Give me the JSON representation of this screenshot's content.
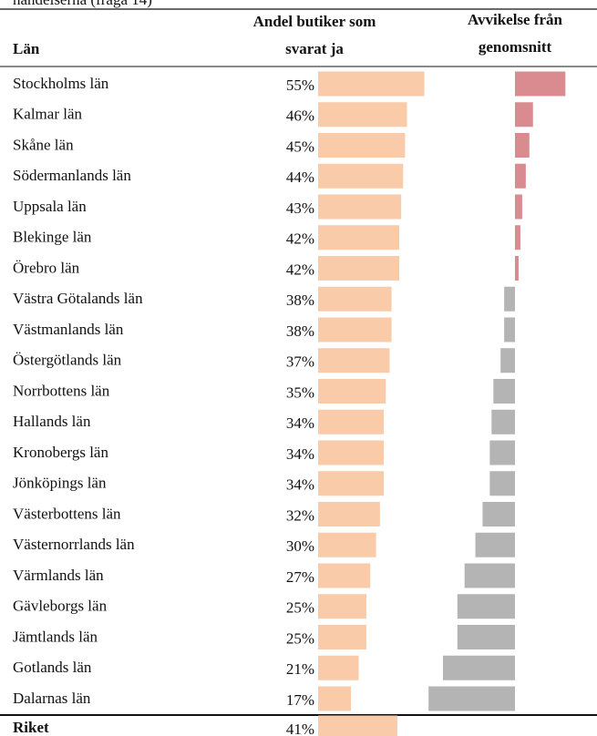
{
  "caption": "handelserna (fråga 14)",
  "table": {
    "headers": {
      "region": "Län",
      "share": [
        "Andel butiker som",
        "svarat ja"
      ],
      "deviation": [
        "Avvikelse från",
        "genomsnitt"
      ]
    },
    "colors": {
      "share": "#f9cba8",
      "positive": "#d98b90",
      "negative": "#b4b4b4"
    },
    "rows": [
      {
        "name": "Stockholms län",
        "share": 55,
        "share_label": "55%",
        "deviation": 14
      },
      {
        "name": "Kalmar län",
        "share": 46,
        "share_label": "46%",
        "deviation": 5
      },
      {
        "name": "Skåne län",
        "share": 45,
        "share_label": "45%",
        "deviation": 4
      },
      {
        "name": "Södermanlands län",
        "share": 44,
        "share_label": "44%",
        "deviation": 3
      },
      {
        "name": "Uppsala län",
        "share": 43,
        "share_label": "43%",
        "deviation": 2
      },
      {
        "name": "Blekinge län",
        "share": 42,
        "share_label": "42%",
        "deviation": 1.5
      },
      {
        "name": "Örebro län",
        "share": 42,
        "share_label": "42%",
        "deviation": 1
      },
      {
        "name": "Västra Götalands län",
        "share": 38,
        "share_label": "38%",
        "deviation": -3
      },
      {
        "name": "Västmanlands län",
        "share": 38,
        "share_label": "38%",
        "deviation": -3
      },
      {
        "name": "Östergötlands län",
        "share": 37,
        "share_label": "37%",
        "deviation": -4
      },
      {
        "name": "Norrbottens län",
        "share": 35,
        "share_label": "35%",
        "deviation": -6
      },
      {
        "name": "Hallands län",
        "share": 34,
        "share_label": "34%",
        "deviation": -6.5
      },
      {
        "name": "Kronobergs län",
        "share": 34,
        "share_label": "34%",
        "deviation": -7
      },
      {
        "name": "Jönköpings län",
        "share": 34,
        "share_label": "34%",
        "deviation": -7
      },
      {
        "name": "Västerbottens län",
        "share": 32,
        "share_label": "32%",
        "deviation": -9
      },
      {
        "name": "Västernorrlands län",
        "share": 30,
        "share_label": "30%",
        "deviation": -11
      },
      {
        "name": "Värmlands län",
        "share": 27,
        "share_label": "27%",
        "deviation": -14
      },
      {
        "name": "Gävleborgs län",
        "share": 25,
        "share_label": "25%",
        "deviation": -16
      },
      {
        "name": "Jämtlands län",
        "share": 25,
        "share_label": "25%",
        "deviation": -16
      },
      {
        "name": "Gotlands län",
        "share": 21,
        "share_label": "21%",
        "deviation": -20
      },
      {
        "name": "Dalarnas län",
        "share": 17,
        "share_label": "17%",
        "deviation": -24
      }
    ],
    "total": {
      "name": "Riket",
      "share": 41,
      "share_label": "41%"
    }
  }
}
